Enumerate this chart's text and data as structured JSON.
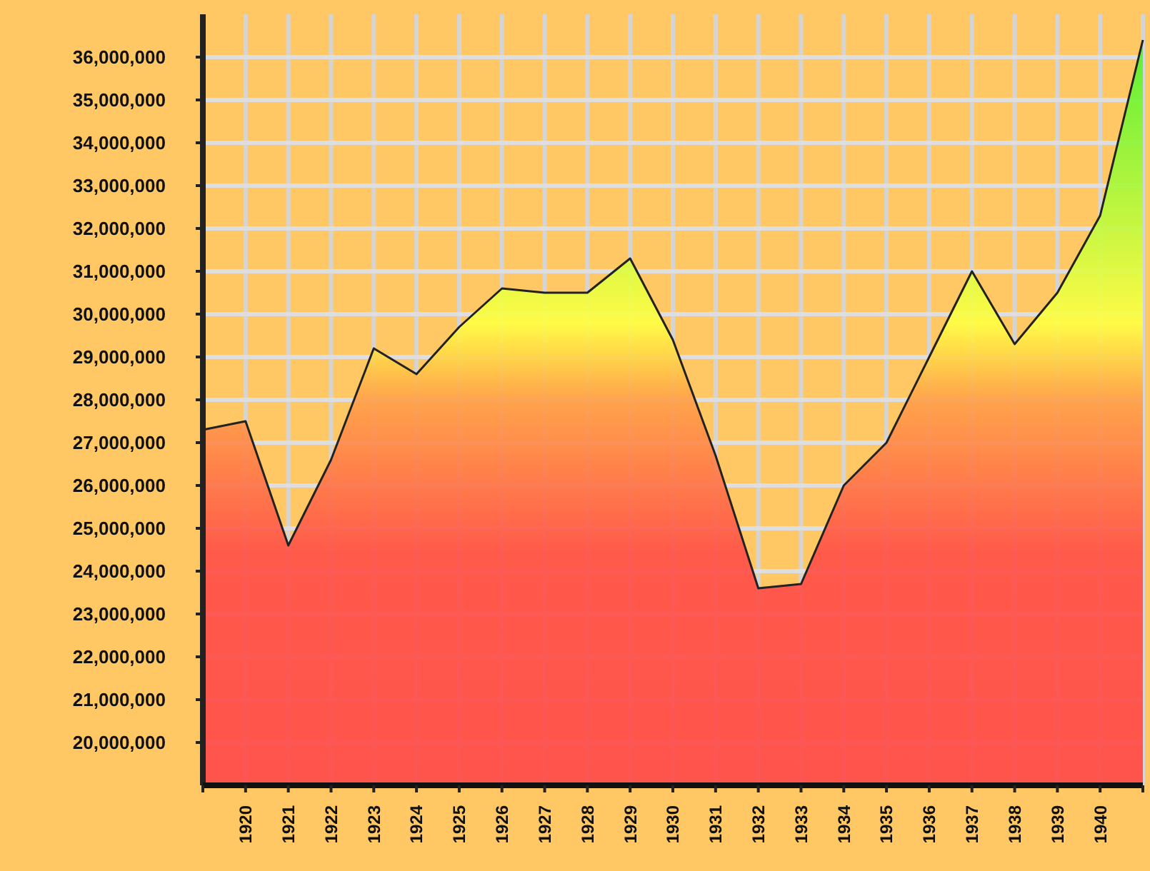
{
  "chart_data": {
    "type": "area",
    "categories": [
      null,
      "1920",
      "1921",
      "1922",
      "1923",
      "1924",
      "1925",
      "1926",
      "1927",
      "1928",
      "1929",
      "1930",
      "1931",
      "1932",
      "1933",
      "1934",
      "1935",
      "1936",
      "1937",
      "1938",
      "1939",
      "1940",
      null
    ],
    "series": [
      {
        "color": "#ffff44",
        "values": [
          27300000,
          27500000,
          24600000,
          26600000,
          29200000,
          28600000,
          29700000,
          30600000,
          30500000,
          30500000,
          31300000,
          29400000,
          26700000,
          23600000,
          23700000,
          26000000,
          27000000,
          29000000,
          31000000,
          29300000,
          30500000,
          32300000,
          36400000
        ]
      }
    ],
    "ylim": [
      19000000,
      37000000
    ],
    "yticks": [
      {
        "value": 20000000,
        "label": "20,000,000"
      },
      {
        "value": 21000000,
        "label": "21,000,000"
      },
      {
        "value": 22000000,
        "label": "22,000,000"
      },
      {
        "value": 23000000,
        "label": "23,000,000"
      },
      {
        "value": 24000000,
        "label": "24,000,000"
      },
      {
        "value": 25000000,
        "label": "25,000,000"
      },
      {
        "value": 26000000,
        "label": "26,000,000"
      },
      {
        "value": 27000000,
        "label": "27,000,000"
      },
      {
        "value": 28000000,
        "label": "28,000,000"
      },
      {
        "value": 29000000,
        "label": "29,000,000"
      },
      {
        "value": 30000000,
        "label": "30,000,000"
      },
      {
        "value": 31000000,
        "label": "31,000,000"
      },
      {
        "value": 32000000,
        "label": "32,000,000"
      },
      {
        "value": 33000000,
        "label": "33,000,000"
      },
      {
        "value": 34000000,
        "label": "34,000,000"
      },
      {
        "value": 35000000,
        "label": "35,000,000"
      },
      {
        "value": 36000000,
        "label": "36,000,000"
      }
    ],
    "grid": true
  }
}
